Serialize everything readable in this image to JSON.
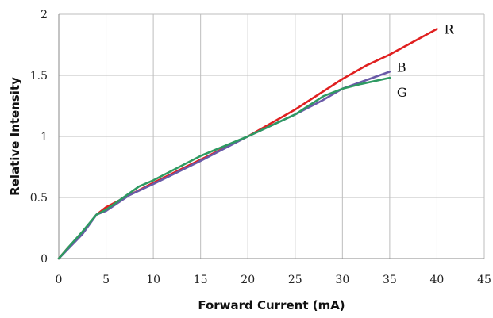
{
  "chart_data": {
    "type": "line",
    "title": "",
    "xlabel": "Forward Current (mA)",
    "ylabel": "Relative Intensity",
    "xlim": [
      0,
      45
    ],
    "ylim": [
      0,
      2
    ],
    "x_ticks": [
      "0",
      "5",
      "10",
      "15",
      "20",
      "25",
      "30",
      "35",
      "40",
      "45"
    ],
    "y_ticks": [
      "0",
      "0.5",
      "1",
      "1.5",
      "2"
    ],
    "grid": true,
    "legend": "inline-labels-at-line-ends",
    "series": [
      {
        "name": "R",
        "color": "#e02020",
        "x": [
          0,
          1,
          2.5,
          4,
          5,
          7.5,
          10,
          15,
          20,
          25,
          30,
          32.5,
          35,
          40
        ],
        "y": [
          0,
          0.09,
          0.21,
          0.36,
          0.42,
          0.52,
          0.62,
          0.81,
          1.0,
          1.22,
          1.47,
          1.58,
          1.67,
          1.88
        ]
      },
      {
        "name": "B",
        "color": "#6a5aa8",
        "x": [
          0,
          1,
          2.5,
          4,
          5,
          7.5,
          10,
          15,
          20,
          25,
          28,
          30,
          35
        ],
        "y": [
          0,
          0.08,
          0.2,
          0.36,
          0.39,
          0.52,
          0.61,
          0.8,
          1.0,
          1.18,
          1.3,
          1.39,
          1.53
        ]
      },
      {
        "name": "G",
        "color": "#2e9a62",
        "x": [
          0,
          1,
          2.5,
          4,
          5,
          8.5,
          10,
          15,
          20,
          25,
          28,
          30,
          32,
          35
        ],
        "y": [
          0,
          0.09,
          0.22,
          0.36,
          0.4,
          0.59,
          0.64,
          0.84,
          1.0,
          1.18,
          1.33,
          1.39,
          1.43,
          1.48
        ]
      }
    ]
  }
}
